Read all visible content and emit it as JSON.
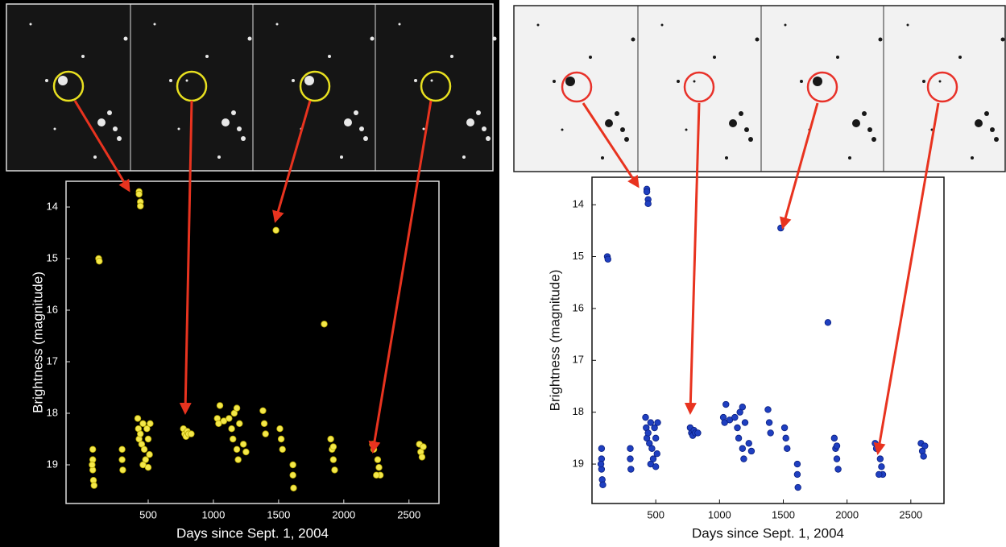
{
  "chart_data": [
    {
      "type": "scatter",
      "color": "#f4e84a",
      "inverted_y": true,
      "xlabel": "Days since Sept. 1, 2004",
      "ylabel": "Brightness (magnitude)",
      "xlim": [
        -130,
        2730
      ],
      "ylim": [
        13.5,
        19.75
      ],
      "xticks": [
        500,
        1000,
        1500,
        2000,
        2500
      ],
      "yticks": [
        14,
        15,
        16,
        17,
        18,
        19
      ],
      "x": [
        75,
        75,
        75,
        80,
        85,
        70,
        120,
        125,
        300,
        300,
        305,
        430,
        430,
        440,
        440,
        420,
        425,
        430,
        440,
        450,
        460,
        470,
        480,
        490,
        500,
        510,
        460,
        500,
        515,
        770,
        780,
        790,
        800,
        810,
        830,
        1030,
        1040,
        1050,
        1080,
        1120,
        1140,
        1150,
        1160,
        1180,
        1200,
        1180,
        1190,
        1230,
        1250,
        1380,
        1390,
        1400,
        1480,
        1510,
        1520,
        1530,
        1610,
        1610,
        1615,
        1850,
        1900,
        1910,
        1920,
        1930,
        1920,
        2220,
        2230,
        2260,
        2270,
        2280,
        2250,
        2580,
        2590,
        2600,
        2610
      ],
      "values": [
        18.7,
        18.9,
        19.1,
        19.3,
        19.4,
        19.0,
        15.0,
        15.05,
        18.7,
        18.9,
        19.1,
        13.7,
        13.75,
        13.9,
        13.98,
        18.1,
        18.3,
        18.5,
        18.4,
        18.6,
        18.2,
        18.7,
        18.9,
        18.3,
        18.5,
        18.8,
        19.0,
        19.05,
        18.2,
        18.3,
        18.4,
        18.45,
        18.35,
        18.4,
        18.4,
        18.1,
        18.2,
        17.85,
        18.15,
        18.1,
        18.3,
        18.5,
        18.0,
        17.9,
        18.2,
        18.7,
        18.9,
        18.6,
        18.75,
        17.95,
        18.2,
        18.4,
        14.45,
        18.3,
        18.5,
        18.7,
        19.0,
        19.2,
        19.45,
        16.27,
        18.5,
        18.7,
        18.9,
        19.1,
        18.65,
        18.6,
        18.7,
        18.9,
        19.05,
        19.2,
        19.2,
        18.6,
        18.75,
        18.85,
        18.65
      ]
    },
    {
      "type": "scatter",
      "color": "#1f3fc0",
      "inverted_y": true,
      "xlabel": "Days since Sept. 1, 2004",
      "ylabel": "Brightness (magnitude)",
      "xlim": [
        0,
        2760
      ],
      "ylim": [
        13.47,
        19.76
      ],
      "xticks": [
        500,
        1000,
        1500,
        2000,
        2500
      ],
      "yticks": [
        14,
        15,
        16,
        17,
        18,
        19
      ],
      "x": [
        75,
        75,
        75,
        80,
        85,
        70,
        120,
        125,
        300,
        300,
        305,
        430,
        430,
        440,
        440,
        420,
        425,
        430,
        440,
        450,
        460,
        470,
        480,
        490,
        500,
        510,
        460,
        500,
        515,
        770,
        780,
        790,
        800,
        810,
        830,
        1030,
        1040,
        1050,
        1080,
        1120,
        1140,
        1150,
        1160,
        1180,
        1200,
        1180,
        1190,
        1230,
        1250,
        1380,
        1390,
        1400,
        1480,
        1510,
        1520,
        1530,
        1610,
        1610,
        1615,
        1850,
        1900,
        1910,
        1920,
        1930,
        1920,
        2220,
        2230,
        2260,
        2270,
        2280,
        2250,
        2580,
        2590,
        2600,
        2610
      ],
      "values": [
        18.7,
        18.9,
        19.1,
        19.3,
        19.4,
        19.0,
        15.0,
        15.05,
        18.7,
        18.9,
        19.1,
        13.7,
        13.75,
        13.9,
        13.98,
        18.1,
        18.3,
        18.5,
        18.4,
        18.6,
        18.2,
        18.7,
        18.9,
        18.3,
        18.5,
        18.8,
        19.0,
        19.05,
        18.2,
        18.3,
        18.4,
        18.45,
        18.35,
        18.4,
        18.4,
        18.1,
        18.2,
        17.85,
        18.15,
        18.1,
        18.3,
        18.5,
        18.0,
        17.9,
        18.2,
        18.7,
        18.9,
        18.6,
        18.75,
        17.95,
        18.2,
        18.4,
        14.45,
        18.3,
        18.5,
        18.7,
        19.0,
        19.2,
        19.45,
        16.27,
        18.5,
        18.7,
        18.9,
        19.1,
        18.65,
        18.6,
        18.7,
        18.9,
        19.05,
        19.2,
        19.2,
        18.6,
        18.75,
        18.85,
        18.65
      ]
    }
  ]
}
